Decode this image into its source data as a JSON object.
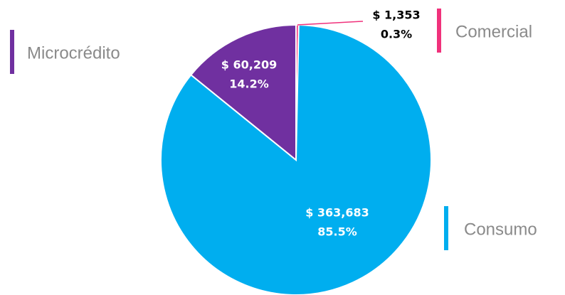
{
  "chart_data": {
    "type": "pie",
    "categories": [
      "Comercial",
      "Consumo",
      "Microcrédito"
    ],
    "values": [
      1353,
      363683,
      60209
    ],
    "value_labels": [
      "$ 1,353",
      "$ 363,683",
      "$ 60,209"
    ],
    "percent_labels": [
      "0.3%",
      "85.5%",
      "14.2%"
    ],
    "colors": [
      "#f0317b",
      "#00aeef",
      "#7030a0"
    ]
  }
}
